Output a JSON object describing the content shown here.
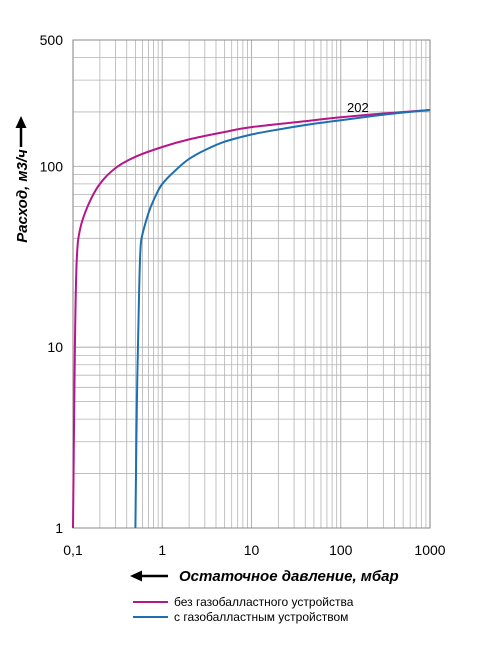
{
  "chart_data": {
    "type": "line",
    "title": "",
    "xlabel": "Остаточное давление, мбар",
    "ylabel": "Расход, м3/ч",
    "x_scale": "log",
    "y_scale": "log",
    "xlim": [
      0.1,
      1000
    ],
    "ylim": [
      1,
      500
    ],
    "x_tick_labels": [
      "0,1",
      "1",
      "10",
      "100",
      "1000"
    ],
    "y_tick_labels": [
      "1",
      "10",
      "100",
      "500"
    ],
    "grid": true,
    "annotation": "202",
    "legend_position": "bottom",
    "series": [
      {
        "name": "без газобалластного устройства",
        "color": "#b5168a",
        "points": [
          [
            0.1,
            1
          ],
          [
            0.105,
            10
          ],
          [
            0.11,
            30
          ],
          [
            0.12,
            45
          ],
          [
            0.15,
            62
          ],
          [
            0.2,
            80
          ],
          [
            0.3,
            98
          ],
          [
            0.5,
            113
          ],
          [
            1,
            128
          ],
          [
            2,
            141
          ],
          [
            5,
            155
          ],
          [
            10,
            165
          ],
          [
            50,
            180
          ],
          [
            100,
            187
          ],
          [
            300,
            196
          ],
          [
            1000,
            205
          ]
        ]
      },
      {
        "name": "с газобалластным устройством",
        "color": "#1e6fb0",
        "points": [
          [
            0.5,
            1
          ],
          [
            0.52,
            5
          ],
          [
            0.55,
            20
          ],
          [
            0.57,
            35
          ],
          [
            0.6,
            42
          ],
          [
            0.7,
            55
          ],
          [
            0.8,
            65
          ],
          [
            1,
            80
          ],
          [
            1.5,
            98
          ],
          [
            2,
            110
          ],
          [
            3,
            123
          ],
          [
            5,
            137
          ],
          [
            10,
            150
          ],
          [
            20,
            160
          ],
          [
            50,
            172
          ],
          [
            100,
            180
          ],
          [
            300,
            193
          ],
          [
            1000,
            205
          ]
        ]
      }
    ]
  },
  "axis_arrows": {
    "x": "arrow-left",
    "y": "arrow-up"
  }
}
